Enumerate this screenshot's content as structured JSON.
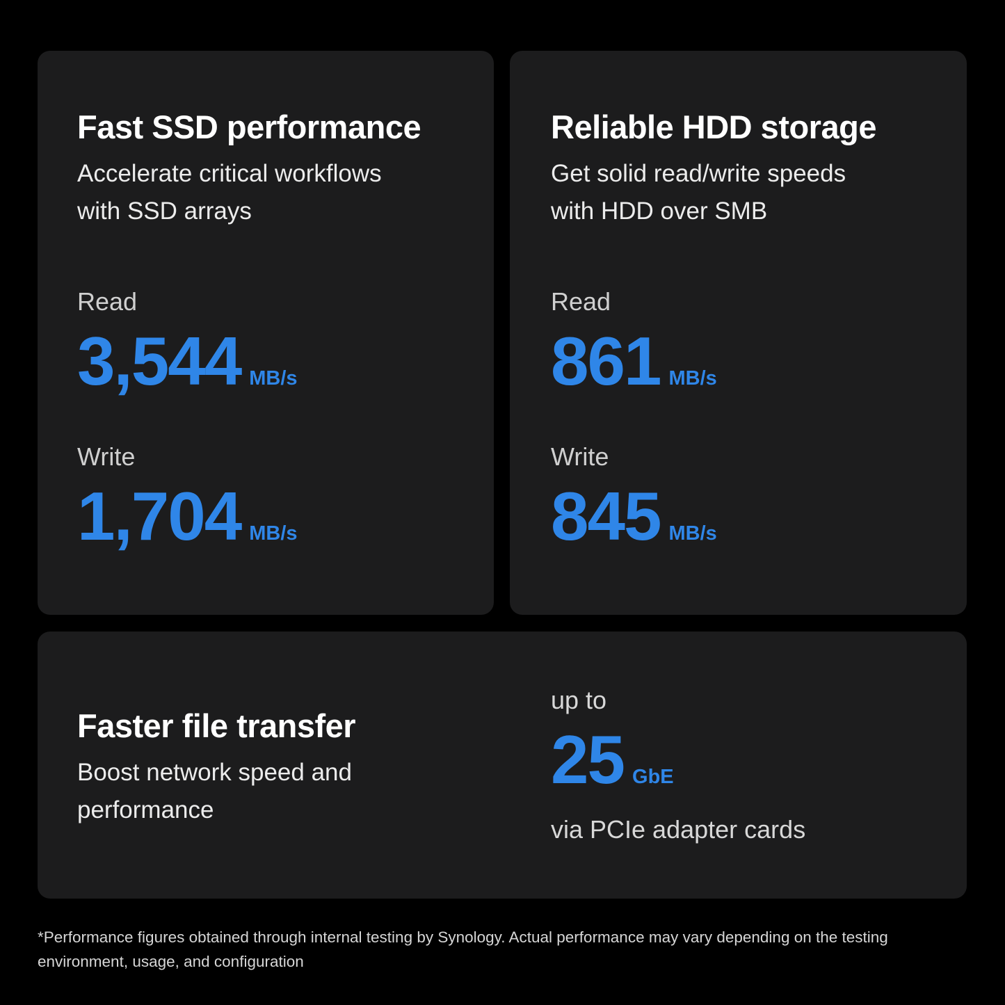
{
  "ssd_card": {
    "title": "Fast SSD performance",
    "subtitle_line1": "Accelerate critical workflows",
    "subtitle_line2": "with SSD arrays",
    "read_label": "Read",
    "read_value": "3,544",
    "read_unit": "MB/s",
    "write_label": "Write",
    "write_value": "1,704",
    "write_unit": "MB/s"
  },
  "hdd_card": {
    "title": "Reliable HDD storage",
    "subtitle_line1": "Get solid read/write speeds",
    "subtitle_line2": "with HDD over SMB",
    "read_label": "Read",
    "read_value": "861",
    "read_unit": "MB/s",
    "write_label": "Write",
    "write_value": "845",
    "write_unit": "MB/s"
  },
  "network_card": {
    "title": "Faster file transfer",
    "subtitle_line1": "Boost network speed and",
    "subtitle_line2": "performance",
    "prefix": "up to",
    "value": "25",
    "unit": "GbE",
    "suffix": "via PCIe adapter cards"
  },
  "footnote": "*Performance figures obtained through internal testing by Synology. Actual performance may vary depending on the testing environment, usage, and configuration",
  "colors": {
    "background": "#000000",
    "card": "#1c1c1d",
    "accent": "#2f86e8",
    "text": "#ffffff"
  }
}
